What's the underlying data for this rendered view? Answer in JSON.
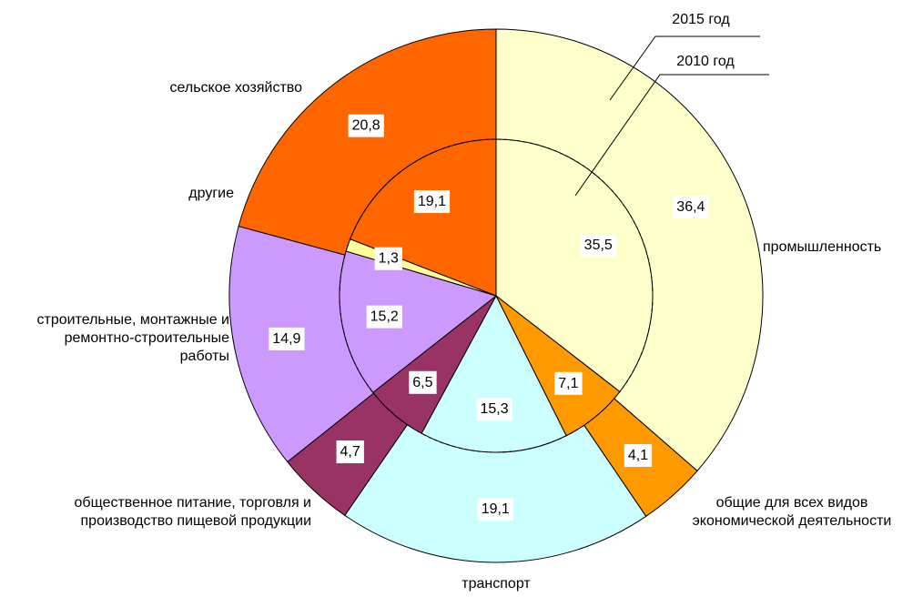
{
  "chart_data": {
    "type": "pie",
    "categories": [
      "промышленность",
      "общие для всех видов экономической деятельности",
      "транспорт",
      "общественное питание, торговля и производство пищевой продукции",
      "строительные, монтажные и ремонтно-строительные работы",
      "другие",
      "сельское хозяйство"
    ],
    "colors": [
      "#ffffcc",
      "#ff9900",
      "#ccffff",
      "#993366",
      "#cc99ff",
      "#ffff99",
      "#ff6600"
    ],
    "series": [
      {
        "name": "2010 год",
        "values": [
          35.5,
          7.1,
          15.3,
          6.5,
          15.2,
          1.3,
          19.1
        ],
        "value_labels": [
          "35,5",
          "7,1",
          "15,3",
          "6,5",
          "15,2",
          "1,3",
          "19,1"
        ]
      },
      {
        "name": "2015 год",
        "values": [
          36.4,
          4.1,
          19.1,
          4.7,
          14.9,
          null,
          20.8
        ],
        "value_labels": [
          "36,4",
          "4,1",
          "19,1",
          "4,7",
          "14,9",
          null,
          "20,8"
        ]
      }
    ]
  }
}
